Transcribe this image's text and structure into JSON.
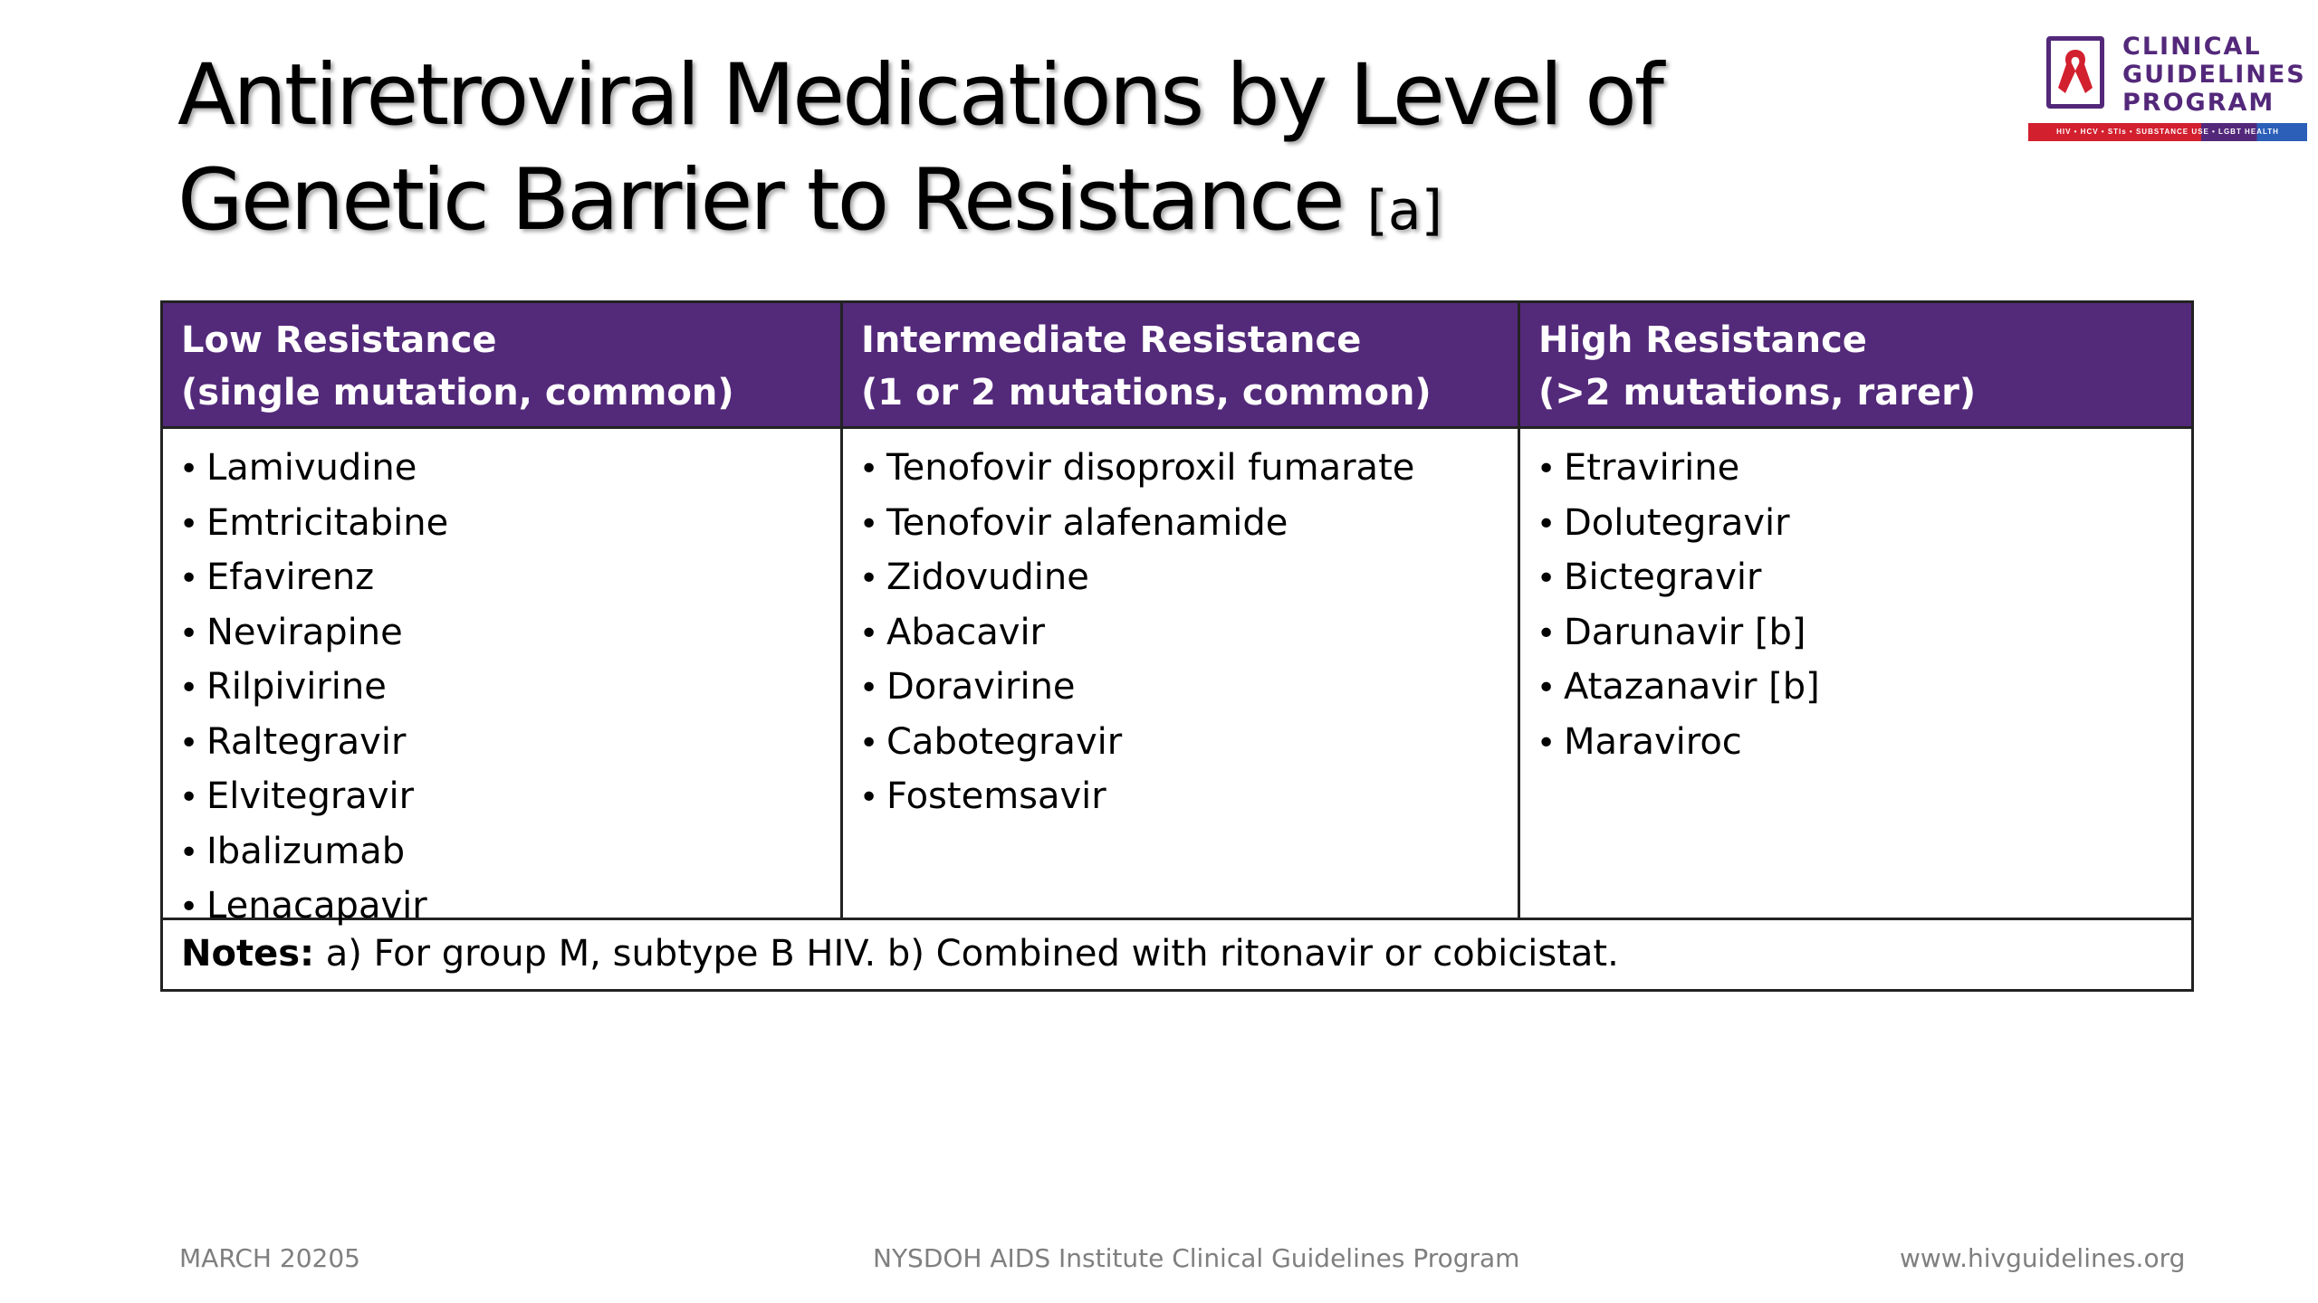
{
  "title": {
    "main": "Antiretroviral Medications by Level of Genetic Barrier to Resistance",
    "superscript": "[a]"
  },
  "logo": {
    "line1": "CLINICAL",
    "line2": "GUIDELINES",
    "line3": "PROGRAM",
    "tagline": "HIV • HCV • STIs • SUBSTANCE USE • LGBT HEALTH",
    "icon": "red-ribbon-icon",
    "colors": {
      "purple": "#53287a",
      "red": "#d2202f",
      "blue": "#2b5fb8"
    }
  },
  "table": {
    "header_color": "#53297a",
    "columns": [
      {
        "header_line1": "Low Resistance",
        "header_line2": "(single mutation, common)",
        "items": [
          "Lamivudine",
          "Emtricitabine",
          "Efavirenz",
          "Nevirapine",
          "Rilpivirine",
          "Raltegravir",
          "Elvitegravir",
          "Ibalizumab",
          "Lenacapavir"
        ]
      },
      {
        "header_line1": "Intermediate Resistance",
        "header_line2": "(1 or 2 mutations, common)",
        "items": [
          "Tenofovir disoproxil fumarate",
          "Tenofovir alafenamide",
          "Zidovudine",
          "Abacavir",
          "Doravirine",
          "Cabotegravir",
          "Fostemsavir"
        ]
      },
      {
        "header_line1": "High Resistance",
        "header_line2": "(>2 mutations, rarer)",
        "items": [
          "Etravirine",
          "Dolutegravir",
          "Bictegravir",
          "Darunavir [b]",
          "Atazanavir [b]",
          "Maraviroc"
        ]
      }
    ],
    "notes": {
      "label": "Notes:",
      "text": " a) For group M, subtype B HIV. b) Combined with ritonavir or cobicistat."
    }
  },
  "footer": {
    "date": "MARCH 20205",
    "organization": "NYSDOH AIDS Institute Clinical Guidelines Program",
    "website": "www.hivguidelines.org"
  }
}
